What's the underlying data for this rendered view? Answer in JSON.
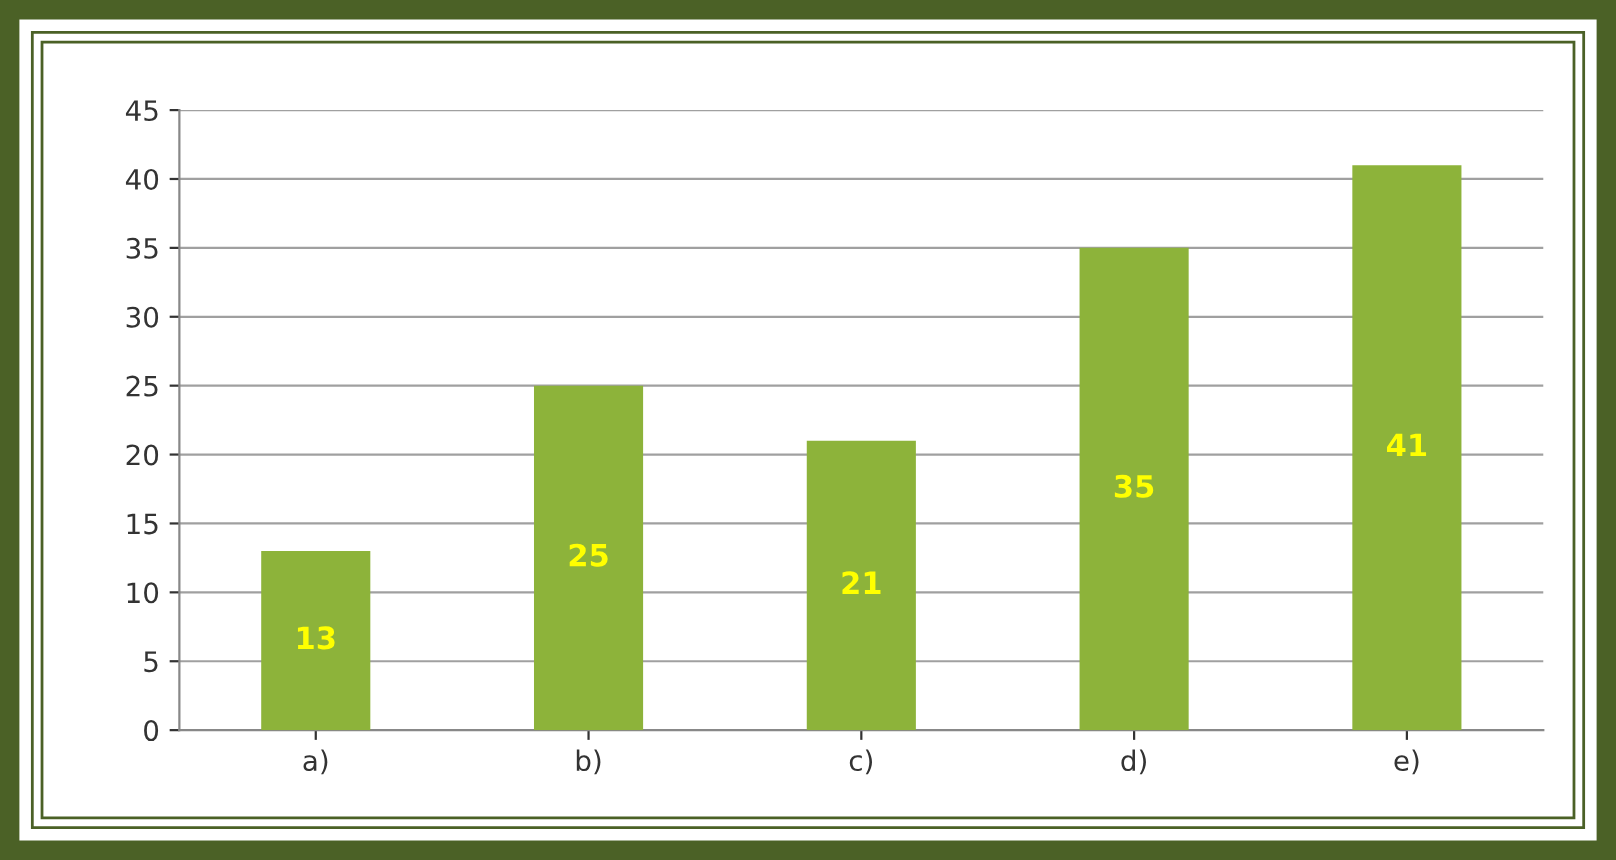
{
  "chart_data": {
    "type": "bar",
    "categories": [
      "a)",
      "b)",
      "c)",
      "d)",
      "e)"
    ],
    "values": [
      13,
      25,
      21,
      35,
      41
    ],
    "color": "#8db33a",
    "ylim": [
      0,
      45
    ],
    "yticks": [
      0,
      5,
      10,
      15,
      20,
      25,
      30,
      35,
      40,
      45
    ],
    "grid": "y",
    "data_labels": true,
    "legend": false
  }
}
